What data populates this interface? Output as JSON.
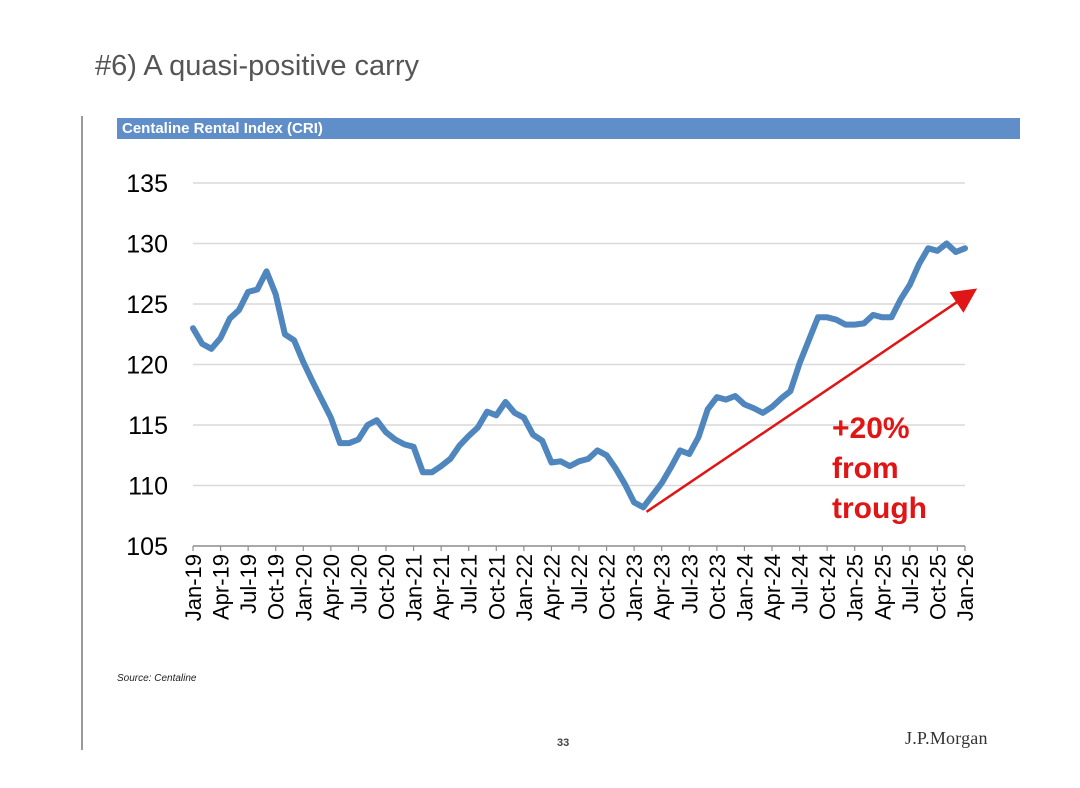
{
  "slide": {
    "title": "#6) A quasi-positive carry",
    "source": "Source: Centaline",
    "page_number": "33",
    "logo_text": "J.P.Morgan"
  },
  "colors": {
    "banner": "#5f8ec8",
    "series": "#4f86bd",
    "annotation": "#e01515",
    "grid": "#d9d9d9"
  },
  "chart_data": {
    "type": "line",
    "title": "Centaline Rental Index (CRI)",
    "xlabel": "",
    "ylabel": "",
    "ylim": [
      105,
      135
    ],
    "yticks": [
      105,
      110,
      115,
      120,
      125,
      130,
      135
    ],
    "xlim": [
      0,
      84
    ],
    "xtick_labels": [
      "Jan-19",
      "Apr-19",
      "Jul-19",
      "Oct-19",
      "Jan-20",
      "Apr-20",
      "Jul-20",
      "Oct-20",
      "Jan-21",
      "Apr-21",
      "Jul-21",
      "Oct-21",
      "Jan-22",
      "Apr-22",
      "Jul-22",
      "Oct-22",
      "Jan-23",
      "Apr-23",
      "Jul-23",
      "Oct-23",
      "Jan-24",
      "Apr-24",
      "Jul-24",
      "Oct-24",
      "Jan-25",
      "Apr-25",
      "Jul-25",
      "Oct-25",
      "Jan-26"
    ],
    "grid": true,
    "series": [
      {
        "name": "CRI",
        "x": [
          0,
          1,
          2,
          3,
          4,
          5,
          6,
          7,
          8,
          9,
          10,
          11,
          12,
          13,
          14,
          15,
          16,
          17,
          18,
          19,
          20,
          21,
          22,
          23,
          24,
          25,
          26,
          27,
          28,
          29,
          30,
          31,
          32,
          33,
          34,
          35,
          36,
          37,
          38,
          39,
          40,
          41,
          42,
          43,
          44,
          45,
          46,
          47,
          48,
          49,
          50,
          51,
          52,
          53,
          54,
          55,
          56,
          57,
          58,
          59,
          60,
          61,
          62,
          63,
          64,
          65,
          66,
          67,
          68,
          69,
          70,
          71,
          72,
          73,
          74,
          75,
          76,
          77,
          78,
          79,
          80,
          81,
          82,
          83,
          84
        ],
        "values": [
          123.0,
          121.7,
          121.3,
          122.2,
          123.8,
          124.5,
          126.0,
          126.2,
          127.7,
          125.8,
          122.5,
          122.0,
          120.2,
          118.6,
          117.1,
          115.6,
          113.5,
          113.5,
          113.8,
          115.0,
          115.4,
          114.4,
          113.8,
          113.4,
          113.2,
          111.1,
          111.1,
          111.6,
          112.2,
          113.3,
          114.1,
          114.8,
          116.1,
          115.8,
          116.9,
          116.0,
          115.6,
          114.2,
          113.7,
          111.9,
          112.0,
          111.6,
          112.0,
          112.2,
          112.9,
          112.5,
          111.4,
          110.1,
          108.6,
          108.2,
          109.2,
          110.2,
          111.5,
          112.9,
          112.6,
          114.0,
          116.3,
          117.3,
          117.1,
          117.4,
          116.7,
          116.4,
          116.0,
          116.5,
          117.2,
          117.8,
          120.1,
          122.0,
          123.9,
          123.9,
          123.7,
          123.3,
          123.3,
          123.4,
          124.1,
          123.9,
          123.9,
          125.4,
          126.6,
          128.3,
          129.6,
          129.4,
          130.0,
          129.3,
          129.6
        ]
      }
    ],
    "annotations": {
      "arrow": {
        "from": [
          50,
          108.9
        ],
        "to": [
          84,
          125.8
        ]
      },
      "lines": [
        "+20%",
        "from",
        "trough"
      ]
    }
  }
}
